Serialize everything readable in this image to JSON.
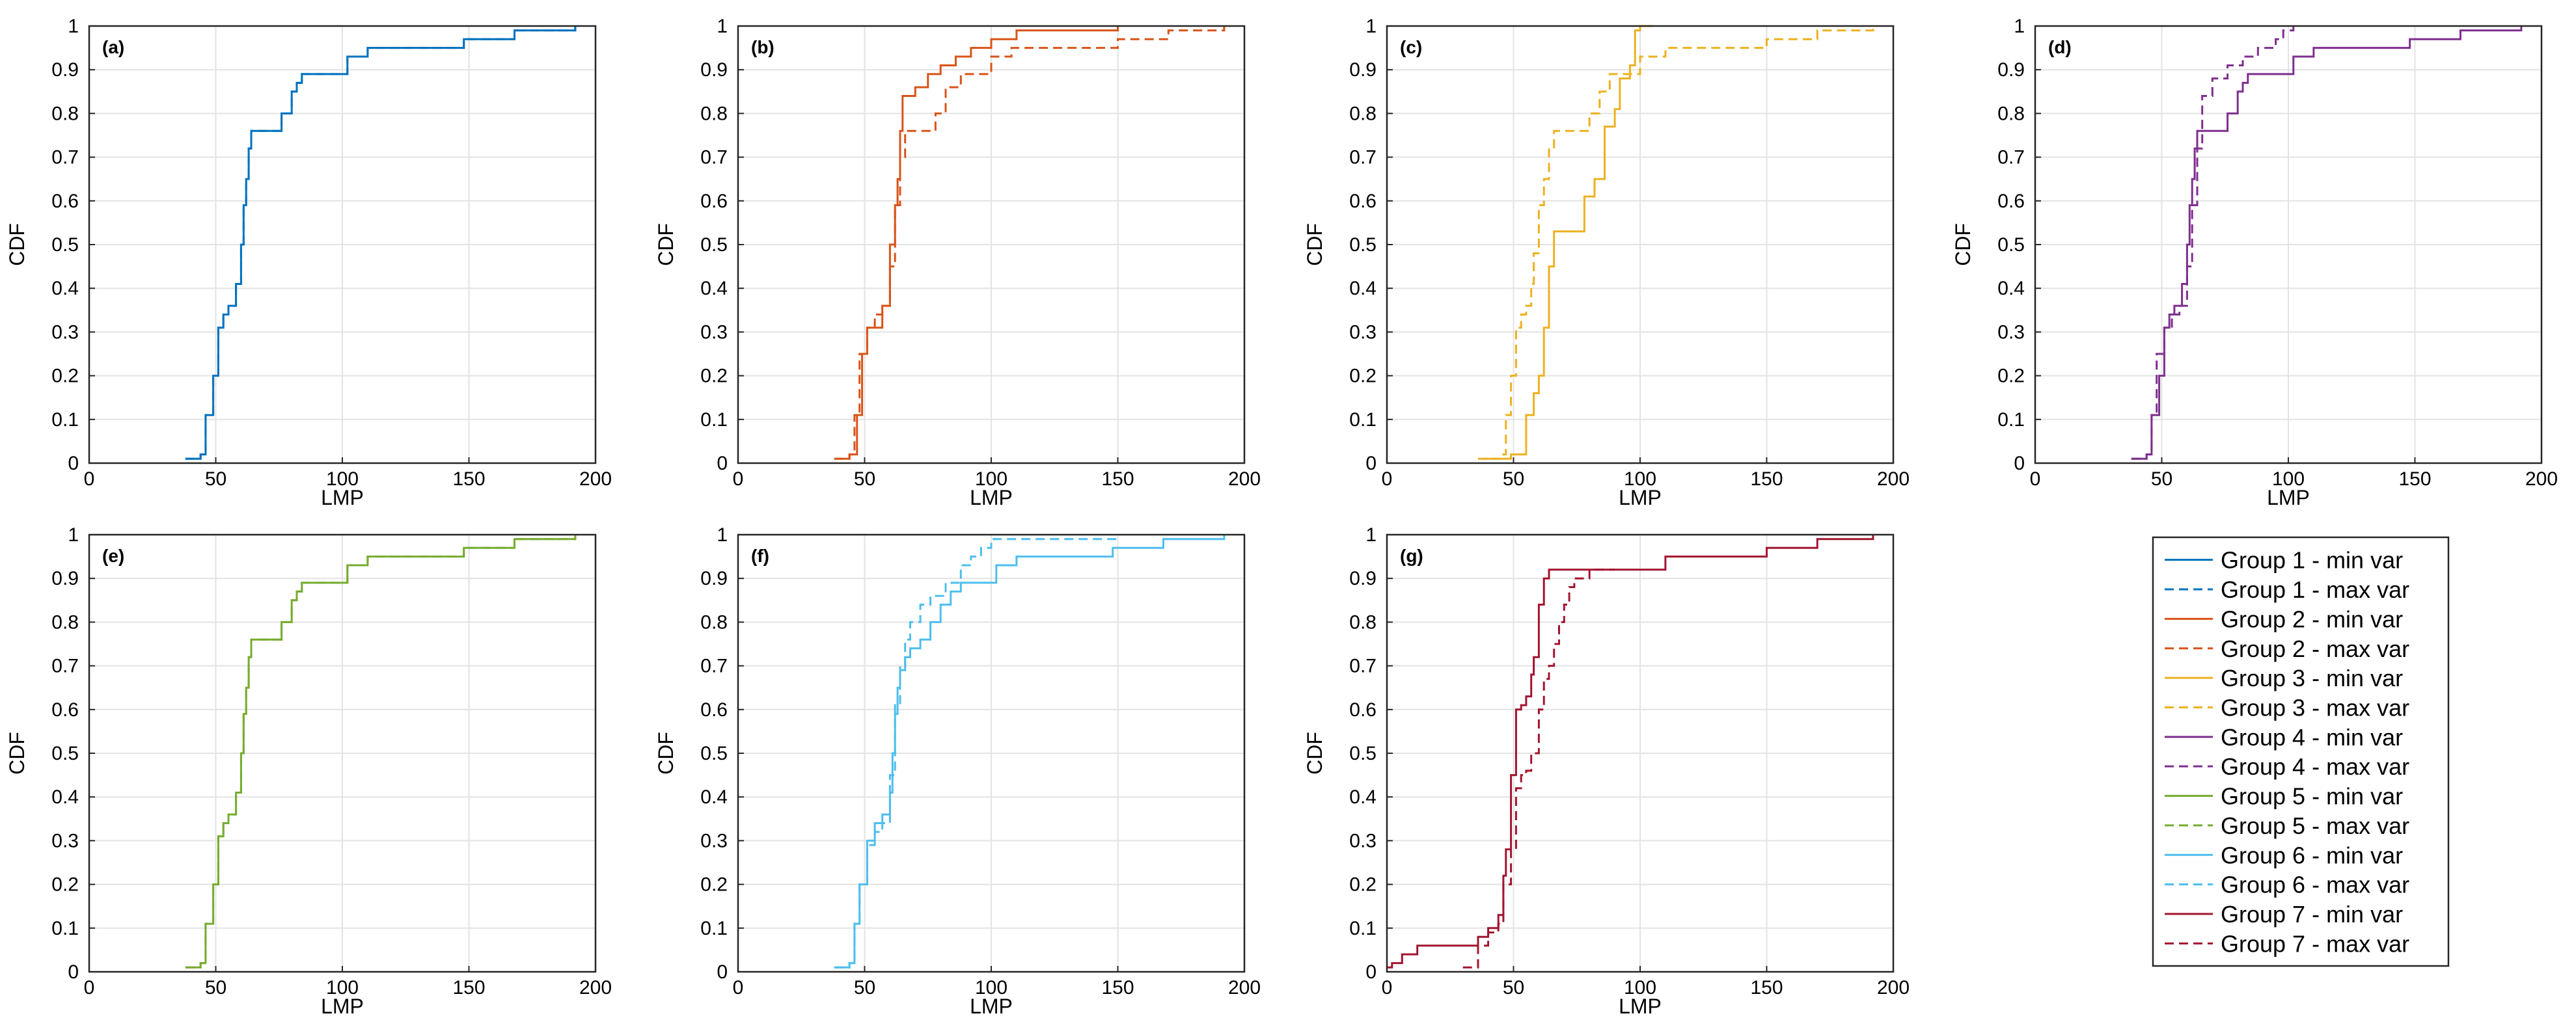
{
  "figure": {
    "x_axis_label": "LMP",
    "y_axis_label": "CDF"
  },
  "legend": {
    "entries": [
      {
        "label": "Group 1 - min var",
        "color": "#0072BD",
        "style": "solid"
      },
      {
        "label": "Group 1 - max var",
        "color": "#0072BD",
        "style": "dashed"
      },
      {
        "label": "Group 2 - min var",
        "color": "#D95319",
        "style": "solid"
      },
      {
        "label": "Group 2 - max var",
        "color": "#D95319",
        "style": "dashed"
      },
      {
        "label": "Group 3 - min var",
        "color": "#EDB120",
        "style": "solid"
      },
      {
        "label": "Group 3 - max var",
        "color": "#EDB120",
        "style": "dashed"
      },
      {
        "label": "Group 4 - min var",
        "color": "#7E2F8E",
        "style": "solid"
      },
      {
        "label": "Group 4 - max var",
        "color": "#7E2F8E",
        "style": "dashed"
      },
      {
        "label": "Group 5 - min var",
        "color": "#77AC30",
        "style": "solid"
      },
      {
        "label": "Group 5 - max var",
        "color": "#77AC30",
        "style": "dashed"
      },
      {
        "label": "Group 6 - min var",
        "color": "#4DBEEE",
        "style": "solid"
      },
      {
        "label": "Group 6 - max var",
        "color": "#4DBEEE",
        "style": "dashed"
      },
      {
        "label": "Group 7 - min var",
        "color": "#A2142F",
        "style": "solid"
      },
      {
        "label": "Group 7 - max var",
        "color": "#A2142F",
        "style": "dashed"
      }
    ]
  },
  "chart_data": [
    {
      "type": "line",
      "panel": "(a)",
      "title": "",
      "xlabel": "LMP",
      "ylabel": "CDF",
      "xlim": [
        0,
        200
      ],
      "ylim": [
        0,
        1
      ],
      "xticks": [
        0,
        50,
        100,
        150,
        200
      ],
      "yticks": [
        0,
        0.1,
        0.2,
        0.3,
        0.4,
        0.5,
        0.6,
        0.7,
        0.8,
        0.9,
        1
      ],
      "grid": true,
      "series": [
        {
          "name": "Group 1 - min var",
          "color": "#0072BD",
          "style": "solid",
          "x": [
            38,
            44,
            46,
            49,
            51,
            53,
            55,
            58,
            60,
            61,
            62,
            63,
            64,
            66,
            68,
            72,
            76,
            80,
            82,
            84,
            86,
            88,
            95,
            102,
            110,
            148,
            168,
            192
          ],
          "y": [
            0.01,
            0.02,
            0.11,
            0.2,
            0.31,
            0.34,
            0.36,
            0.41,
            0.5,
            0.59,
            0.65,
            0.72,
            0.76,
            0.76,
            0.76,
            0.76,
            0.8,
            0.85,
            0.87,
            0.89,
            0.89,
            0.89,
            0.89,
            0.93,
            0.95,
            0.97,
            0.99,
            1.0
          ]
        },
        {
          "name": "Group 1 - max var",
          "color": "#0072BD",
          "style": "dashed",
          "x": [
            38,
            44,
            46,
            49,
            51,
            53,
            55,
            58,
            60,
            61,
            62,
            63,
            64,
            66,
            68,
            72,
            76,
            80,
            82,
            84,
            86,
            88,
            95,
            102,
            110,
            148,
            168,
            192
          ],
          "y": [
            0.01,
            0.02,
            0.11,
            0.2,
            0.31,
            0.34,
            0.36,
            0.41,
            0.5,
            0.59,
            0.65,
            0.72,
            0.76,
            0.76,
            0.76,
            0.76,
            0.8,
            0.85,
            0.87,
            0.89,
            0.89,
            0.89,
            0.89,
            0.93,
            0.95,
            0.97,
            0.99,
            1.0
          ]
        }
      ]
    },
    {
      "type": "line",
      "panel": "(b)",
      "title": "",
      "xlabel": "LMP",
      "ylabel": "CDF",
      "xlim": [
        0,
        200
      ],
      "ylim": [
        0,
        1
      ],
      "xticks": [
        0,
        50,
        100,
        150,
        200
      ],
      "yticks": [
        0,
        0.1,
        0.2,
        0.3,
        0.4,
        0.5,
        0.6,
        0.7,
        0.8,
        0.9,
        1
      ],
      "grid": true,
      "series": [
        {
          "name": "Group 2 - min var",
          "color": "#D95319",
          "style": "solid",
          "x": [
            38,
            44,
            47,
            49,
            51,
            54,
            57,
            60,
            62,
            63,
            64,
            65,
            66,
            70,
            75,
            80,
            86,
            92,
            100,
            110,
            150
          ],
          "y": [
            0.01,
            0.02,
            0.11,
            0.25,
            0.31,
            0.31,
            0.36,
            0.5,
            0.59,
            0.65,
            0.76,
            0.84,
            0.84,
            0.86,
            0.89,
            0.91,
            0.93,
            0.95,
            0.97,
            0.99,
            1.0
          ]
        },
        {
          "name": "Group 2 - max var",
          "color": "#D95319",
          "style": "dashed",
          "x": [
            38,
            44,
            46,
            48,
            51,
            54,
            57,
            60,
            62,
            64,
            66,
            68,
            72,
            78,
            82,
            88,
            100,
            108,
            150,
            170,
            192
          ],
          "y": [
            0.01,
            0.02,
            0.11,
            0.25,
            0.31,
            0.34,
            0.36,
            0.45,
            0.59,
            0.7,
            0.76,
            0.76,
            0.76,
            0.8,
            0.86,
            0.89,
            0.93,
            0.95,
            0.97,
            0.99,
            1.0
          ]
        }
      ]
    },
    {
      "type": "line",
      "panel": "(c)",
      "title": "",
      "xlabel": "LMP",
      "ylabel": "CDF",
      "xlim": [
        0,
        200
      ],
      "ylim": [
        0,
        1
      ],
      "xticks": [
        0,
        50,
        100,
        150,
        200
      ],
      "yticks": [
        0,
        0.1,
        0.2,
        0.3,
        0.4,
        0.5,
        0.6,
        0.7,
        0.8,
        0.9,
        1
      ],
      "grid": true,
      "series": [
        {
          "name": "Group 3 - min var",
          "color": "#EDB120",
          "style": "solid",
          "x": [
            38,
            49,
            55,
            58,
            60,
            62,
            64,
            66,
            70,
            78,
            82,
            86,
            90,
            92,
            96,
            98,
            100,
            105
          ],
          "y": [
            0.01,
            0.02,
            0.11,
            0.16,
            0.2,
            0.31,
            0.45,
            0.53,
            0.53,
            0.61,
            0.65,
            0.77,
            0.81,
            0.88,
            0.91,
            0.99,
            1.0,
            1.0
          ]
        },
        {
          "name": "Group 3 - max var",
          "color": "#EDB120",
          "style": "dashed",
          "x": [
            36,
            46,
            47,
            49,
            51,
            53,
            55,
            57,
            58,
            60,
            62,
            64,
            66,
            70,
            74,
            80,
            84,
            88,
            95,
            100,
            110,
            150,
            170,
            192
          ],
          "y": [
            0.01,
            0.02,
            0.11,
            0.2,
            0.31,
            0.34,
            0.36,
            0.41,
            0.48,
            0.59,
            0.65,
            0.72,
            0.76,
            0.76,
            0.76,
            0.8,
            0.85,
            0.89,
            0.89,
            0.93,
            0.95,
            0.97,
            0.99,
            1.0
          ]
        }
      ]
    },
    {
      "type": "line",
      "panel": "(d)",
      "title": "",
      "xlabel": "LMP",
      "ylabel": "CDF",
      "xlim": [
        0,
        200
      ],
      "ylim": [
        0,
        1
      ],
      "xticks": [
        0,
        50,
        100,
        150,
        200
      ],
      "yticks": [
        0,
        0.1,
        0.2,
        0.3,
        0.4,
        0.5,
        0.6,
        0.7,
        0.8,
        0.9,
        1
      ],
      "grid": true,
      "series": [
        {
          "name": "Group 4 - min var",
          "color": "#7E2F8E",
          "style": "solid",
          "x": [
            38,
            44,
            46,
            49,
            51,
            53,
            55,
            58,
            60,
            61,
            62,
            63,
            64,
            66,
            68,
            72,
            76,
            80,
            82,
            84,
            86,
            88,
            95,
            102,
            110,
            148,
            168,
            192
          ],
          "y": [
            0.01,
            0.02,
            0.11,
            0.2,
            0.31,
            0.34,
            0.36,
            0.41,
            0.5,
            0.59,
            0.65,
            0.72,
            0.76,
            0.76,
            0.76,
            0.76,
            0.8,
            0.85,
            0.87,
            0.89,
            0.89,
            0.89,
            0.89,
            0.93,
            0.95,
            0.97,
            0.99,
            1.0
          ]
        },
        {
          "name": "Group 4 - max var",
          "color": "#7E2F8E",
          "style": "dashed",
          "x": [
            38,
            44,
            46,
            48,
            51,
            54,
            57,
            60,
            62,
            64,
            66,
            70,
            76,
            82,
            88,
            95,
            98,
            102
          ],
          "y": [
            0.01,
            0.02,
            0.11,
            0.25,
            0.31,
            0.34,
            0.36,
            0.45,
            0.59,
            0.72,
            0.84,
            0.88,
            0.91,
            0.93,
            0.95,
            0.97,
            0.99,
            1.0
          ]
        }
      ]
    },
    {
      "type": "line",
      "panel": "(e)",
      "title": "",
      "xlabel": "LMP",
      "ylabel": "CDF",
      "xlim": [
        0,
        200
      ],
      "ylim": [
        0,
        1
      ],
      "xticks": [
        0,
        50,
        100,
        150,
        200
      ],
      "yticks": [
        0,
        0.1,
        0.2,
        0.3,
        0.4,
        0.5,
        0.6,
        0.7,
        0.8,
        0.9,
        1
      ],
      "grid": true,
      "series": [
        {
          "name": "Group 5 - min var",
          "color": "#77AC30",
          "style": "solid",
          "x": [
            38,
            44,
            46,
            49,
            51,
            53,
            55,
            58,
            60,
            61,
            62,
            63,
            64,
            66,
            68,
            72,
            76,
            80,
            82,
            84,
            86,
            88,
            95,
            102,
            110,
            148,
            168,
            192
          ],
          "y": [
            0.01,
            0.02,
            0.11,
            0.2,
            0.31,
            0.34,
            0.36,
            0.41,
            0.5,
            0.59,
            0.65,
            0.72,
            0.76,
            0.76,
            0.76,
            0.76,
            0.8,
            0.85,
            0.87,
            0.89,
            0.89,
            0.89,
            0.89,
            0.93,
            0.95,
            0.97,
            0.99,
            1.0
          ]
        },
        {
          "name": "Group 5 - max var",
          "color": "#77AC30",
          "style": "dashed",
          "x": [
            38,
            44,
            46,
            49,
            51,
            53,
            55,
            58,
            60,
            61,
            62,
            63,
            64,
            66,
            68,
            72,
            76,
            80,
            82,
            84,
            86,
            88,
            95,
            102,
            110,
            148,
            168,
            192
          ],
          "y": [
            0.01,
            0.02,
            0.11,
            0.2,
            0.31,
            0.34,
            0.36,
            0.41,
            0.5,
            0.59,
            0.65,
            0.72,
            0.76,
            0.76,
            0.76,
            0.76,
            0.8,
            0.85,
            0.87,
            0.89,
            0.89,
            0.89,
            0.89,
            0.93,
            0.95,
            0.97,
            0.99,
            1.0
          ]
        }
      ]
    },
    {
      "type": "line",
      "panel": "(f)",
      "title": "",
      "xlabel": "LMP",
      "ylabel": "CDF",
      "xlim": [
        0,
        200
      ],
      "ylim": [
        0,
        1
      ],
      "xticks": [
        0,
        50,
        100,
        150,
        200
      ],
      "yticks": [
        0,
        0.1,
        0.2,
        0.3,
        0.4,
        0.5,
        0.6,
        0.7,
        0.8,
        0.9,
        1
      ],
      "grid": true,
      "series": [
        {
          "name": "Group 6 - min var",
          "color": "#4DBEEE",
          "style": "solid",
          "x": [
            38,
            44,
            46,
            48,
            51,
            54,
            57,
            60,
            61,
            62,
            63,
            64,
            66,
            68,
            72,
            76,
            80,
            84,
            88,
            95,
            102,
            110,
            148,
            168,
            192
          ],
          "y": [
            0.01,
            0.02,
            0.11,
            0.2,
            0.3,
            0.34,
            0.36,
            0.41,
            0.5,
            0.59,
            0.65,
            0.69,
            0.72,
            0.74,
            0.76,
            0.8,
            0.84,
            0.87,
            0.89,
            0.89,
            0.93,
            0.95,
            0.97,
            0.99,
            1.0
          ]
        },
        {
          "name": "Group 6 - max var",
          "color": "#4DBEEE",
          "style": "dashed",
          "x": [
            38,
            44,
            46,
            48,
            51,
            54,
            57,
            60,
            62,
            64,
            66,
            68,
            72,
            76,
            82,
            88,
            92,
            96,
            100,
            150
          ],
          "y": [
            0.01,
            0.02,
            0.11,
            0.2,
            0.29,
            0.32,
            0.34,
            0.45,
            0.61,
            0.7,
            0.76,
            0.8,
            0.84,
            0.86,
            0.89,
            0.93,
            0.95,
            0.97,
            0.99,
            1.0
          ]
        }
      ]
    },
    {
      "type": "line",
      "panel": "(g)",
      "title": "",
      "xlabel": "LMP",
      "ylabel": "CDF",
      "xlim": [
        0,
        200
      ],
      "ylim": [
        0,
        1
      ],
      "xticks": [
        0,
        50,
        100,
        150,
        200
      ],
      "yticks": [
        0,
        0.1,
        0.2,
        0.3,
        0.4,
        0.5,
        0.6,
        0.7,
        0.8,
        0.9,
        1
      ],
      "grid": true,
      "series": [
        {
          "name": "Group 7 - min var",
          "color": "#A2142F",
          "style": "solid",
          "x": [
            0,
            2,
            6,
            12,
            22,
            30,
            36,
            40,
            44,
            46,
            47,
            49,
            51,
            53,
            55,
            57,
            58,
            60,
            62,
            64,
            66,
            70,
            110,
            150,
            170,
            192
          ],
          "y": [
            0.01,
            0.02,
            0.04,
            0.06,
            0.06,
            0.06,
            0.08,
            0.1,
            0.13,
            0.22,
            0.28,
            0.45,
            0.6,
            0.61,
            0.63,
            0.68,
            0.72,
            0.84,
            0.9,
            0.92,
            0.92,
            0.92,
            0.95,
            0.97,
            0.99,
            1.0
          ]
        },
        {
          "name": "Group 7 - max var",
          "color": "#A2142F",
          "style": "dashed",
          "x": [
            30,
            36,
            40,
            44,
            46,
            49,
            51,
            53,
            55,
            57,
            60,
            62,
            64,
            66,
            68,
            70,
            72,
            74,
            80,
            90
          ],
          "y": [
            0.01,
            0.06,
            0.09,
            0.11,
            0.2,
            0.28,
            0.42,
            0.45,
            0.46,
            0.5,
            0.6,
            0.67,
            0.7,
            0.75,
            0.8,
            0.84,
            0.88,
            0.9,
            0.92,
            0.92
          ]
        }
      ]
    }
  ]
}
